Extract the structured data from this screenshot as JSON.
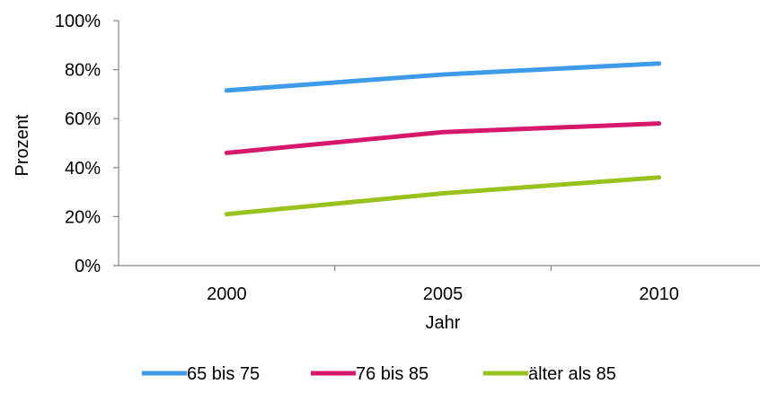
{
  "chart_data": {
    "type": "line",
    "title": "",
    "xlabel": "Jahr",
    "ylabel": "Prozent",
    "categories": [
      "2000",
      "2005",
      "2010"
    ],
    "ylim": [
      0,
      100
    ],
    "yticks": [
      0,
      20,
      40,
      60,
      80,
      100
    ],
    "ytick_labels": [
      "0%",
      "20%",
      "40%",
      "60%",
      "80%",
      "100%"
    ],
    "grid": false,
    "legend_position": "bottom",
    "series": [
      {
        "name": "65 bis 75",
        "values": [
          71.5,
          78,
          82.5
        ],
        "color": "#3d9be9"
      },
      {
        "name": "76 bis 85",
        "values": [
          46,
          54.5,
          58
        ],
        "color": "#d6186c"
      },
      {
        "name": "älter als 85",
        "values": [
          21,
          29.5,
          36
        ],
        "color": "#99c31c"
      }
    ]
  }
}
